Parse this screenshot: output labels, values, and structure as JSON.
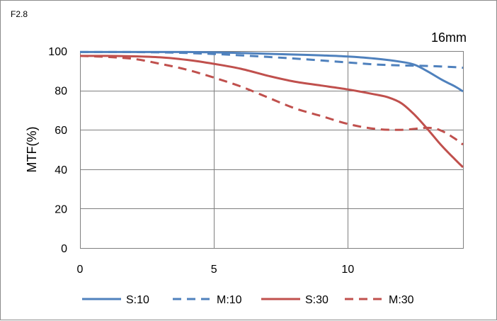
{
  "chart_data": {
    "type": "line",
    "corner_label": "F2.8",
    "title": "16mm",
    "xlabel": "",
    "ylabel": "MTF(%)",
    "xlim": [
      0,
      14.3
    ],
    "ylim": [
      0,
      100
    ],
    "x_ticks": [
      "0",
      "5",
      "10"
    ],
    "x_tick_values": [
      0,
      5,
      10
    ],
    "y_ticks": [
      "0",
      "20",
      "40",
      "60",
      "80",
      "100"
    ],
    "y_tick_values": [
      0,
      20,
      40,
      60,
      80,
      100
    ],
    "grid": true,
    "legend_position": "bottom",
    "series": [
      {
        "name": "S:10",
        "color": "#4f81bd",
        "dash": "solid",
        "x": [
          0,
          1,
          2,
          3,
          4,
          5,
          6,
          7,
          8,
          9,
          10,
          11,
          12,
          12.5,
          13,
          13.5,
          14,
          14.3
        ],
        "y": [
          99.5,
          99.5,
          99.5,
          99.5,
          99.5,
          99.3,
          99,
          98.6,
          98.2,
          97.8,
          97.2,
          96.2,
          94.5,
          93,
          89.5,
          85.5,
          82,
          79.5
        ]
      },
      {
        "name": "M:10",
        "color": "#4f81bd",
        "dash": "dashed",
        "x": [
          0,
          1,
          2,
          3,
          4,
          5,
          6,
          7,
          8,
          9,
          10,
          11,
          12,
          13,
          14,
          14.3
        ],
        "y": [
          99.5,
          99.5,
          99.5,
          99.3,
          99,
          98.5,
          97.8,
          97,
          96.2,
          95.2,
          94.2,
          93.2,
          92.7,
          92.4,
          91.8,
          91.5
        ]
      },
      {
        "name": "S:30",
        "color": "#c0504d",
        "dash": "solid",
        "x": [
          0,
          1,
          2,
          3,
          4,
          5,
          6,
          7,
          8,
          9,
          10,
          11,
          11.5,
          12,
          12.5,
          13,
          13.5,
          14,
          14.3
        ],
        "y": [
          97.5,
          97.5,
          97.3,
          96.8,
          95.5,
          93.5,
          91,
          87.5,
          84.5,
          82.5,
          80.5,
          78,
          76.5,
          73.5,
          67.5,
          60,
          52,
          45,
          41
        ]
      },
      {
        "name": "M:30",
        "color": "#c0504d",
        "dash": "dashed",
        "x": [
          0,
          1,
          2,
          3,
          4,
          5,
          6,
          7,
          8,
          9,
          10,
          11,
          12,
          13,
          13.5,
          14,
          14.3
        ],
        "y": [
          97.5,
          97,
          96,
          93.5,
          90.5,
          86.5,
          82,
          76.5,
          71,
          67,
          63,
          60.5,
          60,
          61,
          59.5,
          55.5,
          52.5
        ]
      }
    ]
  }
}
